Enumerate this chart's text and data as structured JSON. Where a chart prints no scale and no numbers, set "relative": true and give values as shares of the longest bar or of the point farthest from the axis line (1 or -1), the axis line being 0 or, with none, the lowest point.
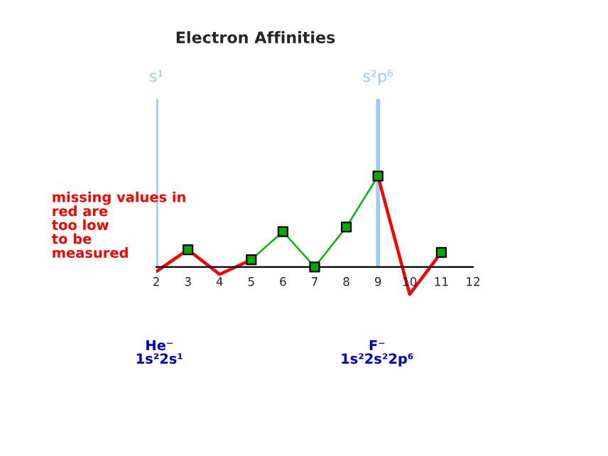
{
  "chart_data": {
    "type": "line",
    "title": "Electron Affinities",
    "relative": true,
    "x": [
      2,
      3,
      4,
      5,
      6,
      7,
      8,
      9,
      10,
      11
    ],
    "xlim": [
      2,
      12
    ],
    "xticks": [
      2,
      3,
      4,
      5,
      6,
      7,
      8,
      9,
      10,
      11,
      12
    ],
    "series": [
      {
        "color": "#ff0000",
        "values": [
          -0.05,
          0.19,
          -0.08,
          0.08,
          null,
          null,
          null,
          1,
          -0.3,
          0.16
        ]
      },
      {
        "color": "#00bb00",
        "values": [
          null,
          null,
          null,
          0.08,
          0.39,
          0,
          0.44,
          1,
          null,
          null
        ]
      },
      {
        "type": "scatter",
        "color": "#00aa00",
        "marker": "square",
        "values": [
          null,
          0.19,
          null,
          0.08,
          0.39,
          0,
          0.44,
          1,
          null,
          0.16
        ]
      }
    ],
    "ref_lines": [
      {
        "axis": "x",
        "value": 2,
        "label": "s¹",
        "color": "#99ccff"
      },
      {
        "axis": "x",
        "value": 9,
        "label": "s²p⁶",
        "color": "#99ccff"
      }
    ],
    "annotations": [
      "missing values in\nred are\ntoo low\nto be\nmeasured",
      "He⁻\n1s²2s¹",
      "F⁻\n1s²2s²2p⁶"
    ],
    "grid": false,
    "legend": false
  }
}
